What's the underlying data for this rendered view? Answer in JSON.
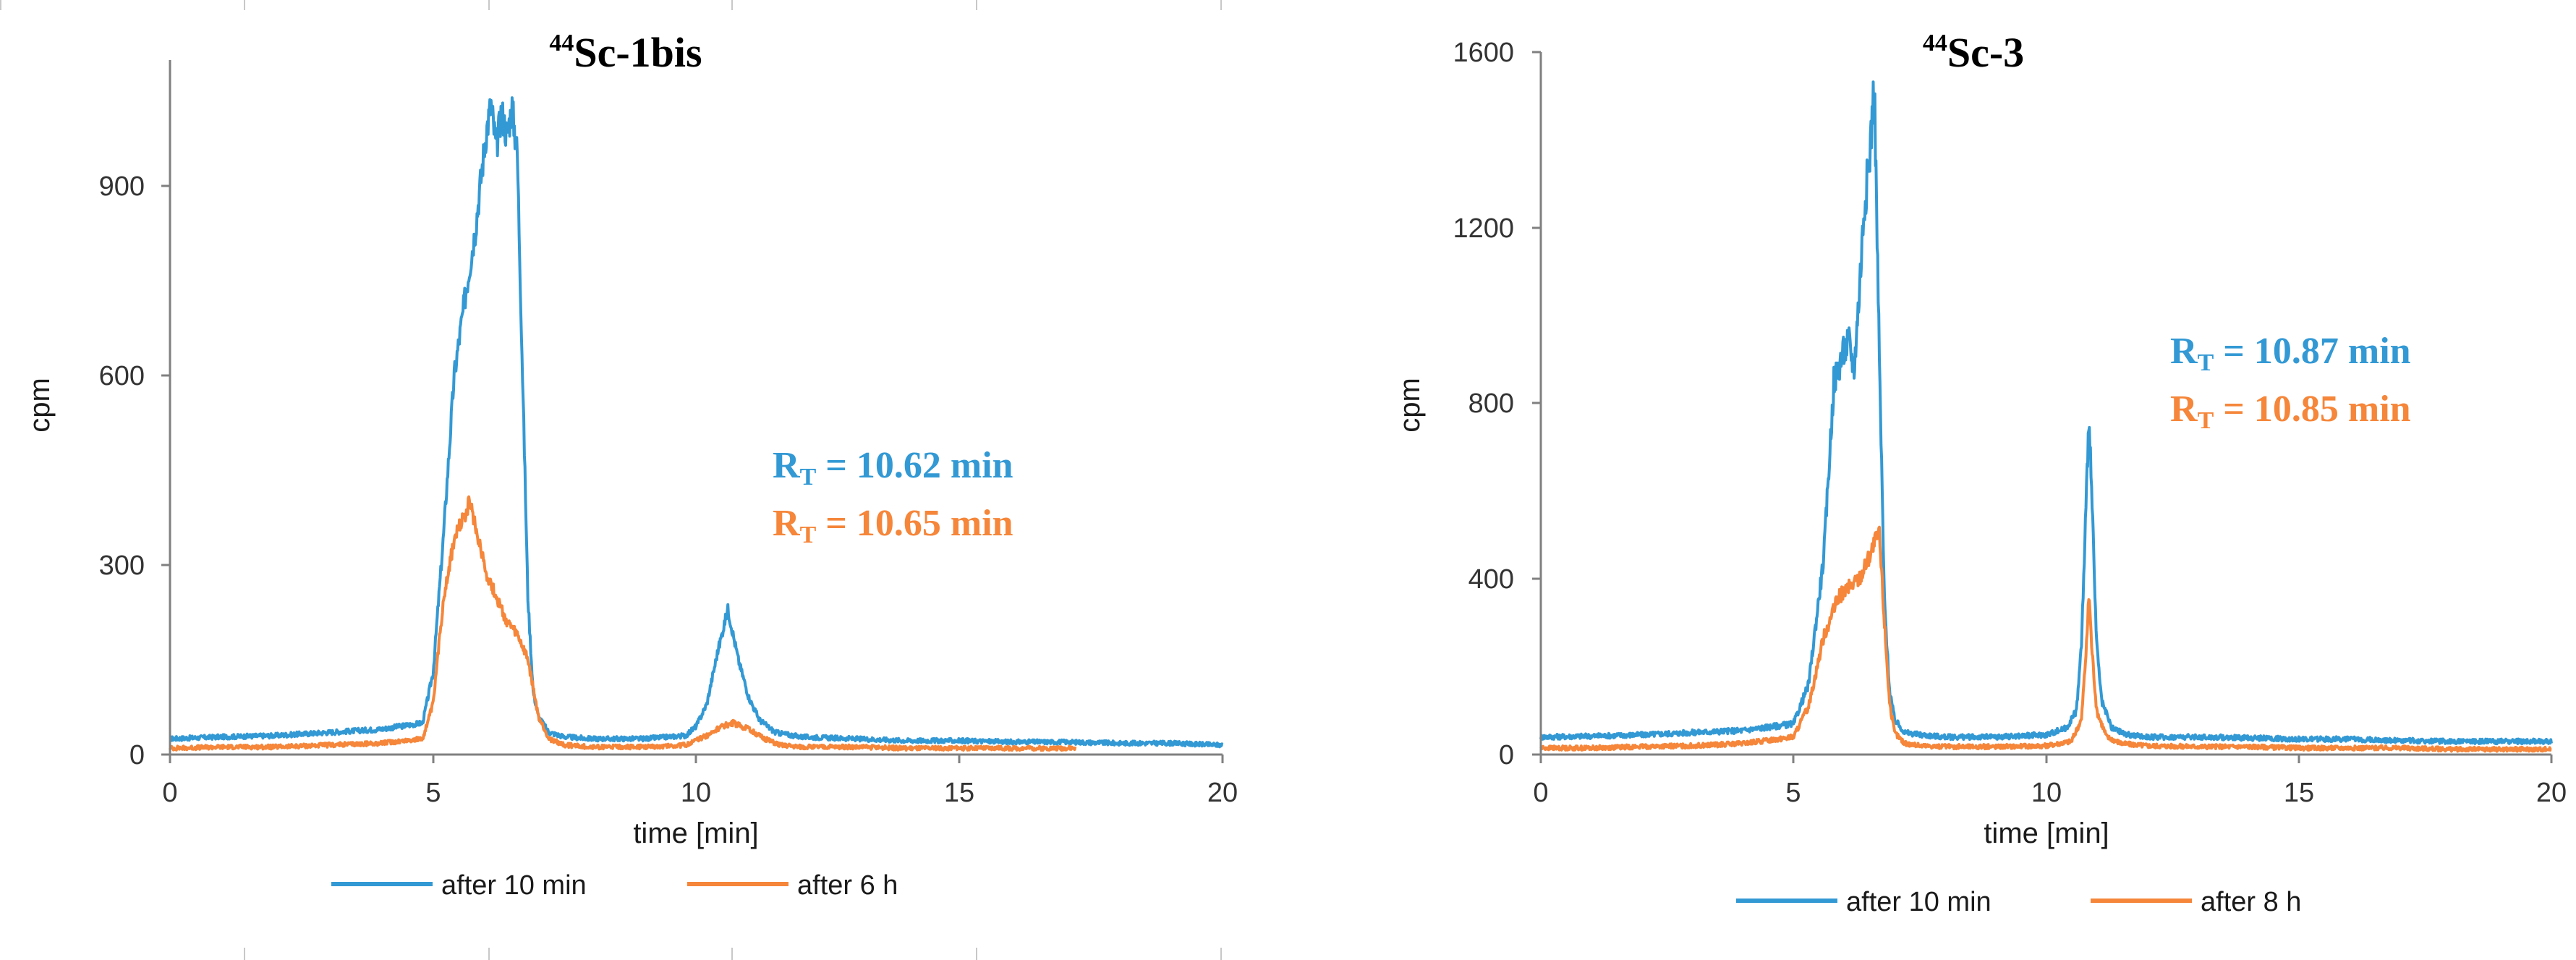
{
  "colors": {
    "blue": "#3399D4",
    "orange": "#F5863A",
    "axis": "#808080",
    "tick_text": "#333333"
  },
  "charts": [
    {
      "title": {
        "sup": "44",
        "main": "Sc-1bis"
      },
      "legend": [
        "after 10 min",
        "after 6 h"
      ],
      "annotations": {
        "blue": {
          "prefix": "R",
          "sub": "T",
          "value": " = 10.62 min"
        },
        "orange": {
          "prefix": "R",
          "sub": "T",
          "value": " = 10.65 min"
        }
      },
      "xticks": [
        "0",
        "5",
        "10",
        "15",
        "20"
      ],
      "yticks": [
        "0",
        "300",
        "600",
        "900"
      ]
    },
    {
      "title": {
        "sup": "44",
        "main": "Sc-3"
      },
      "legend": [
        "after 10 min",
        "after 8 h"
      ],
      "annotations": {
        "blue": {
          "prefix": "R",
          "sub": "T",
          "value": " = 10.87 min"
        },
        "orange": {
          "prefix": "R",
          "sub": "T",
          "value": " = 10.85 min"
        }
      },
      "xticks": [
        "0",
        "5",
        "10",
        "15",
        "20"
      ],
      "yticks": [
        "0",
        "400",
        "800",
        "1200",
        "1600"
      ]
    }
  ],
  "chart_data": [
    {
      "type": "line",
      "title": "44Sc-1bis",
      "xlabel": "time [min]",
      "ylabel": "cpm",
      "xlim": [
        0,
        20
      ],
      "ylim": [
        0,
        1100
      ],
      "xticks": [
        0,
        5,
        10,
        15,
        20
      ],
      "yticks": [
        0,
        300,
        600,
        900
      ],
      "series": [
        {
          "name": "after 10 min",
          "color": "#3399D4",
          "x": [
            0,
            1,
            2,
            3,
            4,
            4.8,
            5.0,
            5.2,
            5.4,
            5.6,
            5.8,
            6.0,
            6.1,
            6.2,
            6.3,
            6.4,
            6.5,
            6.6,
            6.7,
            6.8,
            6.9,
            7.0,
            7.2,
            7.5,
            8,
            9,
            9.8,
            10.0,
            10.2,
            10.4,
            10.6,
            10.8,
            11.0,
            11.2,
            11.5,
            12,
            13,
            14,
            15,
            16,
            17,
            18,
            19,
            20
          ],
          "y": [
            25,
            28,
            30,
            35,
            40,
            50,
            130,
            350,
            600,
            720,
            830,
            980,
            1030,
            960,
            1020,
            980,
            1025,
            950,
            600,
            250,
            100,
            60,
            35,
            28,
            25,
            25,
            30,
            45,
            80,
            160,
            230,
            150,
            90,
            55,
            35,
            28,
            25,
            22,
            22,
            20,
            20,
            18,
            18,
            15
          ]
        },
        {
          "name": "after 6 h",
          "color": "#F5863A",
          "x": [
            0,
            1,
            2,
            3,
            4,
            4.8,
            5.0,
            5.2,
            5.4,
            5.6,
            5.7,
            5.8,
            5.9,
            6.0,
            6.2,
            6.4,
            6.6,
            6.8,
            7.0,
            7.2,
            7.5,
            8,
            9,
            9.8,
            10.2,
            10.5,
            10.7,
            11.0,
            11.3,
            11.6,
            12,
            13,
            14,
            15,
            16,
            17,
            17.2
          ],
          "y": [
            10,
            12,
            12,
            15,
            18,
            25,
            80,
            250,
            340,
            380,
            400,
            360,
            330,
            290,
            250,
            210,
            190,
            150,
            60,
            25,
            15,
            12,
            12,
            15,
            30,
            45,
            50,
            40,
            25,
            15,
            12,
            12,
            10,
            10,
            10,
            10,
            10
          ]
        }
      ],
      "annotations": [
        "RT = 10.62 min",
        "RT = 10.65 min"
      ],
      "legend_position": "bottom"
    },
    {
      "type": "line",
      "title": "44Sc-3",
      "xlabel": "time [min]",
      "ylabel": "cpm",
      "xlim": [
        0,
        20
      ],
      "ylim": [
        0,
        1600
      ],
      "xticks": [
        0,
        5,
        10,
        15,
        20
      ],
      "yticks": [
        0,
        400,
        800,
        1200,
        1600
      ],
      "series": [
        {
          "name": "after 10 min",
          "color": "#3399D4",
          "x": [
            0,
            1,
            2,
            3,
            4,
            5.0,
            5.3,
            5.6,
            5.8,
            6.0,
            6.1,
            6.2,
            6.3,
            6.4,
            6.5,
            6.6,
            6.7,
            6.8,
            6.9,
            7.0,
            7.2,
            7.5,
            8,
            9,
            10,
            10.4,
            10.6,
            10.7,
            10.8,
            10.85,
            10.9,
            11.0,
            11.1,
            11.3,
            11.6,
            12,
            13,
            14,
            15,
            16,
            17,
            18,
            19,
            20
          ],
          "y": [
            40,
            42,
            45,
            50,
            55,
            70,
            160,
            450,
            850,
            920,
            940,
            880,
            1050,
            1250,
            1350,
            1530,
            900,
            350,
            150,
            80,
            50,
            45,
            40,
            40,
            45,
            60,
            100,
            250,
            600,
            790,
            600,
            250,
            120,
            60,
            45,
            40,
            40,
            38,
            35,
            35,
            32,
            30,
            30,
            30
          ]
        },
        {
          "name": "after 8 h",
          "color": "#F5863A",
          "x": [
            0,
            1,
            2,
            3,
            4,
            5.0,
            5.3,
            5.6,
            5.9,
            6.1,
            6.3,
            6.5,
            6.6,
            6.7,
            6.8,
            6.9,
            7.0,
            7.2,
            7.5,
            8,
            9,
            10,
            10.5,
            10.7,
            10.8,
            10.85,
            10.9,
            11.0,
            11.2,
            11.5,
            12,
            13,
            14,
            15,
            16,
            17,
            18,
            19,
            20
          ],
          "y": [
            15,
            15,
            18,
            20,
            25,
            40,
            110,
            270,
            360,
            380,
            400,
            450,
            480,
            500,
            300,
            120,
            50,
            25,
            20,
            18,
            18,
            20,
            30,
            80,
            250,
            370,
            250,
            100,
            40,
            25,
            20,
            18,
            18,
            15,
            15,
            15,
            12,
            12,
            12
          ]
        }
      ],
      "annotations": [
        "RT = 10.87 min",
        "RT = 10.85 min"
      ],
      "legend_position": "bottom"
    }
  ]
}
